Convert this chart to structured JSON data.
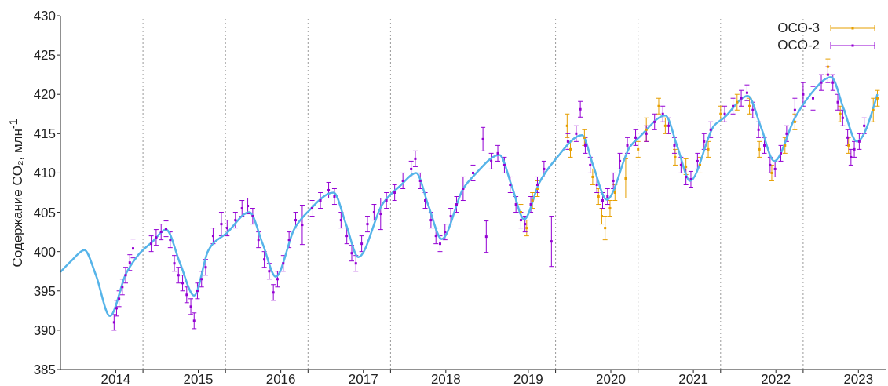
{
  "chart_data": {
    "type": "scatter",
    "ylabel": "Содержание CO₂, млн$^{-1}$",
    "xlim": [
      2013.33,
      2023.33
    ],
    "ylim": [
      385,
      430
    ],
    "yticks": [
      385,
      390,
      395,
      400,
      405,
      410,
      415,
      420,
      425,
      430
    ],
    "xticks": [
      2014,
      2015,
      2016,
      2017,
      2018,
      2019,
      2020,
      2021,
      2022,
      2023,
      {
        "value": 2014.33,
        "label": null
      },
      {
        "value": 2015.33,
        "label": null
      },
      {
        "value": 2016.33,
        "label": null
      },
      {
        "value": 2017.33,
        "label": null
      },
      {
        "value": 2018.33,
        "label": null
      },
      {
        "value": 2019.33,
        "label": null
      },
      {
        "value": 2020.33,
        "label": null
      },
      {
        "value": 2021.33,
        "label": null
      },
      {
        "value": 2022.33,
        "label": null
      }
    ],
    "ref_lines": [
      {
        "axis": "x",
        "value": 2014.33,
        "color": "#999999",
        "line_style": "dotted"
      },
      {
        "axis": "x",
        "value": 2015.33,
        "color": "#999999",
        "line_style": "dotted"
      },
      {
        "axis": "x",
        "value": 2016.33,
        "color": "#999999",
        "line_style": "dotted"
      },
      {
        "axis": "x",
        "value": 2017.33,
        "color": "#999999",
        "line_style": "dotted"
      },
      {
        "axis": "x",
        "value": 2018.33,
        "color": "#999999",
        "line_style": "dotted"
      },
      {
        "axis": "x",
        "value": 2019.33,
        "color": "#999999",
        "line_style": "dotted"
      },
      {
        "axis": "x",
        "value": 2020.33,
        "color": "#999999",
        "line_style": "dotted"
      },
      {
        "axis": "x",
        "value": 2021.33,
        "color": "#999999",
        "line_style": "dotted"
      },
      {
        "axis": "x",
        "value": 2022.33,
        "color": "#999999",
        "line_style": "dotted"
      }
    ],
    "legend": "top right",
    "marker": "square",
    "series": [
      {
        "name": "OCO-3",
        "color": "#e69f00",
        "x": [
          2018.91,
          2018.98,
          2019.05,
          2019.11,
          2019.47,
          2019.51,
          2019.68,
          2019.78,
          2019.85,
          2019.89,
          2019.93,
          2019.99,
          2020.05,
          2020.18,
          2020.33,
          2020.43,
          2020.58,
          2020.66,
          2020.78,
          2020.91,
          2021.08,
          2021.18,
          2021.33,
          2021.53,
          2021.68,
          2021.8,
          2021.95,
          2022.11,
          2022.23,
          2022.63,
          2022.78,
          2022.88,
          2023.18,
          2023.23
        ],
        "values": [
          405.0,
          403.0,
          406.5,
          408.0,
          416.0,
          413.0,
          414.5,
          409.5,
          407.0,
          404.5,
          403.0,
          405.5,
          407.5,
          409.3,
          413.0,
          415.5,
          418.5,
          416.0,
          412.0,
          410.8,
          411.0,
          413.0,
          417.5,
          419.0,
          418.5,
          413.0,
          410.0,
          413.5,
          416.5,
          423.5,
          417.5,
          413.5,
          418.0,
          419.5
        ],
        "errors": [
          1,
          1,
          1,
          1,
          1.5,
          1,
          1,
          1,
          1,
          1,
          1.5,
          1,
          1,
          2.5,
          1,
          1.5,
          1,
          1,
          1,
          1,
          1,
          1,
          1,
          1,
          1,
          1,
          1,
          1,
          1,
          1,
          1,
          1,
          1.5,
          1
        ]
      },
      {
        "name": "OCO-2",
        "color": "#9400d3",
        "x": [
          2013.98,
          2014.01,
          2014.04,
          2014.08,
          2014.12,
          2014.17,
          2014.21,
          2014.43,
          2014.49,
          2014.55,
          2014.61,
          2014.66,
          2014.71,
          2014.76,
          2014.81,
          2014.86,
          2014.91,
          2014.95,
          2014.99,
          2015.04,
          2015.09,
          2015.18,
          2015.28,
          2015.35,
          2015.45,
          2015.53,
          2015.6,
          2015.66,
          2015.73,
          2015.8,
          2015.86,
          2015.91,
          2015.96,
          2016.03,
          2016.1,
          2016.18,
          2016.26,
          2016.38,
          2016.48,
          2016.58,
          2016.65,
          2016.73,
          2016.8,
          2016.86,
          2016.91,
          2016.98,
          2017.05,
          2017.13,
          2017.21,
          2017.28,
          2017.38,
          2017.48,
          2017.58,
          2017.63,
          2017.69,
          2017.75,
          2017.82,
          2017.88,
          2017.93,
          2017.99,
          2018.06,
          2018.13,
          2018.21,
          2018.33,
          2018.45,
          2018.49,
          2018.55,
          2018.63,
          2018.71,
          2018.78,
          2018.85,
          2018.91,
          2018.96,
          2019.03,
          2019.11,
          2019.19,
          2019.28,
          2019.48,
          2019.58,
          2019.63,
          2019.69,
          2019.75,
          2019.83,
          2019.9,
          2019.96,
          2020.03,
          2020.11,
          2020.2,
          2020.3,
          2020.43,
          2020.53,
          2020.63,
          2020.7,
          2020.77,
          2020.85,
          2020.91,
          2020.97,
          2021.05,
          2021.13,
          2021.21,
          2021.38,
          2021.48,
          2021.58,
          2021.65,
          2021.72,
          2021.79,
          2021.86,
          2021.93,
          2021.99,
          2022.06,
          2022.13,
          2022.23,
          2022.33,
          2022.45,
          2022.55,
          2022.63,
          2022.69,
          2022.75,
          2022.81,
          2022.87,
          2022.91,
          2022.95,
          2023.01,
          2023.07
        ],
        "values": [
          391.0,
          392.8,
          394.0,
          395.5,
          397.0,
          398.6,
          400.4,
          401.0,
          401.8,
          402.5,
          402.9,
          401.5,
          398.5,
          397.0,
          396.0,
          394.5,
          393.0,
          391.2,
          395.0,
          396.5,
          398.0,
          402.0,
          403.5,
          403.0,
          404.0,
          405.5,
          405.8,
          404.5,
          401.5,
          399.0,
          397.5,
          394.8,
          396.5,
          398.5,
          401.5,
          404.0,
          403.4,
          405.5,
          406.5,
          407.8,
          407.0,
          404.0,
          402.0,
          399.8,
          398.5,
          401.0,
          403.5,
          405.0,
          404.8,
          406.5,
          407.5,
          409.0,
          410.5,
          411.8,
          409.0,
          406.5,
          404.0,
          402.0,
          401.0,
          402.5,
          404.5,
          406.0,
          408.0,
          410.0,
          414.3,
          401.9,
          411.5,
          412.5,
          411.0,
          408.5,
          406.0,
          404.0,
          403.5,
          406.0,
          408.5,
          410.5,
          401.3,
          414.0,
          415.0,
          418.1,
          413.5,
          411.0,
          408.5,
          406.5,
          407.0,
          409.0,
          411.5,
          413.5,
          414.5,
          415.0,
          416.5,
          417.5,
          416.0,
          413.5,
          411.0,
          409.5,
          409.2,
          411.5,
          414.0,
          415.5,
          417.5,
          418.5,
          419.5,
          420.2,
          418.0,
          415.5,
          413.5,
          411.0,
          410.5,
          412.5,
          415.0,
          418.0,
          420.0,
          419.5,
          421.5,
          422.5,
          421.5,
          419.0,
          417.0,
          414.5,
          412.0,
          413.0,
          414.0,
          416.0
        ],
        "errors": [
          1,
          1,
          1,
          1,
          1,
          1,
          1.2,
          1,
          1,
          1,
          1,
          1,
          1,
          1,
          1,
          1,
          1,
          1,
          1,
          1,
          1,
          1,
          1.5,
          1,
          1,
          1,
          1,
          1,
          1,
          1,
          1,
          1,
          1,
          1,
          1,
          1,
          2.5,
          1,
          1,
          1,
          1,
          1,
          1,
          1,
          1,
          1,
          1,
          1,
          2,
          1,
          1,
          1,
          1,
          1,
          1,
          1,
          1,
          1,
          1,
          1,
          1,
          1,
          1.5,
          1,
          1.5,
          2,
          1,
          1,
          1,
          1,
          1,
          1,
          1,
          1,
          1,
          1,
          3.2,
          1,
          1,
          1,
          1,
          1,
          1,
          1,
          1,
          1,
          1,
          1,
          1,
          1,
          1,
          1,
          1,
          1,
          1,
          1,
          1,
          1,
          1,
          1,
          1,
          1,
          1,
          1,
          1,
          1,
          1,
          1,
          1,
          1,
          1,
          1.5,
          1.5,
          1.5,
          1,
          1,
          1,
          1,
          1,
          1,
          1,
          1,
          1,
          1
        ]
      },
      {
        "type": "line",
        "color": "#56b4e9",
        "marker": "none",
        "x": [
          2013.33,
          2013.47,
          2013.62,
          2013.76,
          2013.93,
          2014.12,
          2014.26,
          2014.45,
          2014.61,
          2014.78,
          2014.95,
          2015.12,
          2015.35,
          2015.62,
          2015.78,
          2015.94,
          2016.16,
          2016.35,
          2016.64,
          2016.79,
          2016.94,
          2017.23,
          2017.45,
          2017.64,
          2017.79,
          2017.95,
          2018.21,
          2018.37,
          2018.65,
          2018.8,
          2018.95,
          2019.13,
          2019.35,
          2019.65,
          2019.79,
          2019.95,
          2020.23,
          2020.36,
          2020.66,
          2020.81,
          2020.96,
          2021.25,
          2021.37,
          2021.66,
          2021.82,
          2021.98,
          2022.23,
          2022.42,
          2022.67,
          2022.82,
          2022.98,
          2023.23
        ],
        "values": [
          397.4,
          398.9,
          400.2,
          397.0,
          391.8,
          397.1,
          399.4,
          401.3,
          402.8,
          398.5,
          394.4,
          400.1,
          402.4,
          405.0,
          401.0,
          396.8,
          402.8,
          405.3,
          407.5,
          403.5,
          399.3,
          406.0,
          408.4,
          410.0,
          405.8,
          401.6,
          408.0,
          410.0,
          412.3,
          408.3,
          404.1,
          408.7,
          412.0,
          414.8,
          410.8,
          406.6,
          413.3,
          414.7,
          417.3,
          413.2,
          409.0,
          416.0,
          417.0,
          419.8,
          415.8,
          411.5,
          417.0,
          420.0,
          422.2,
          418.2,
          414.0,
          420.0
        ]
      }
    ]
  }
}
